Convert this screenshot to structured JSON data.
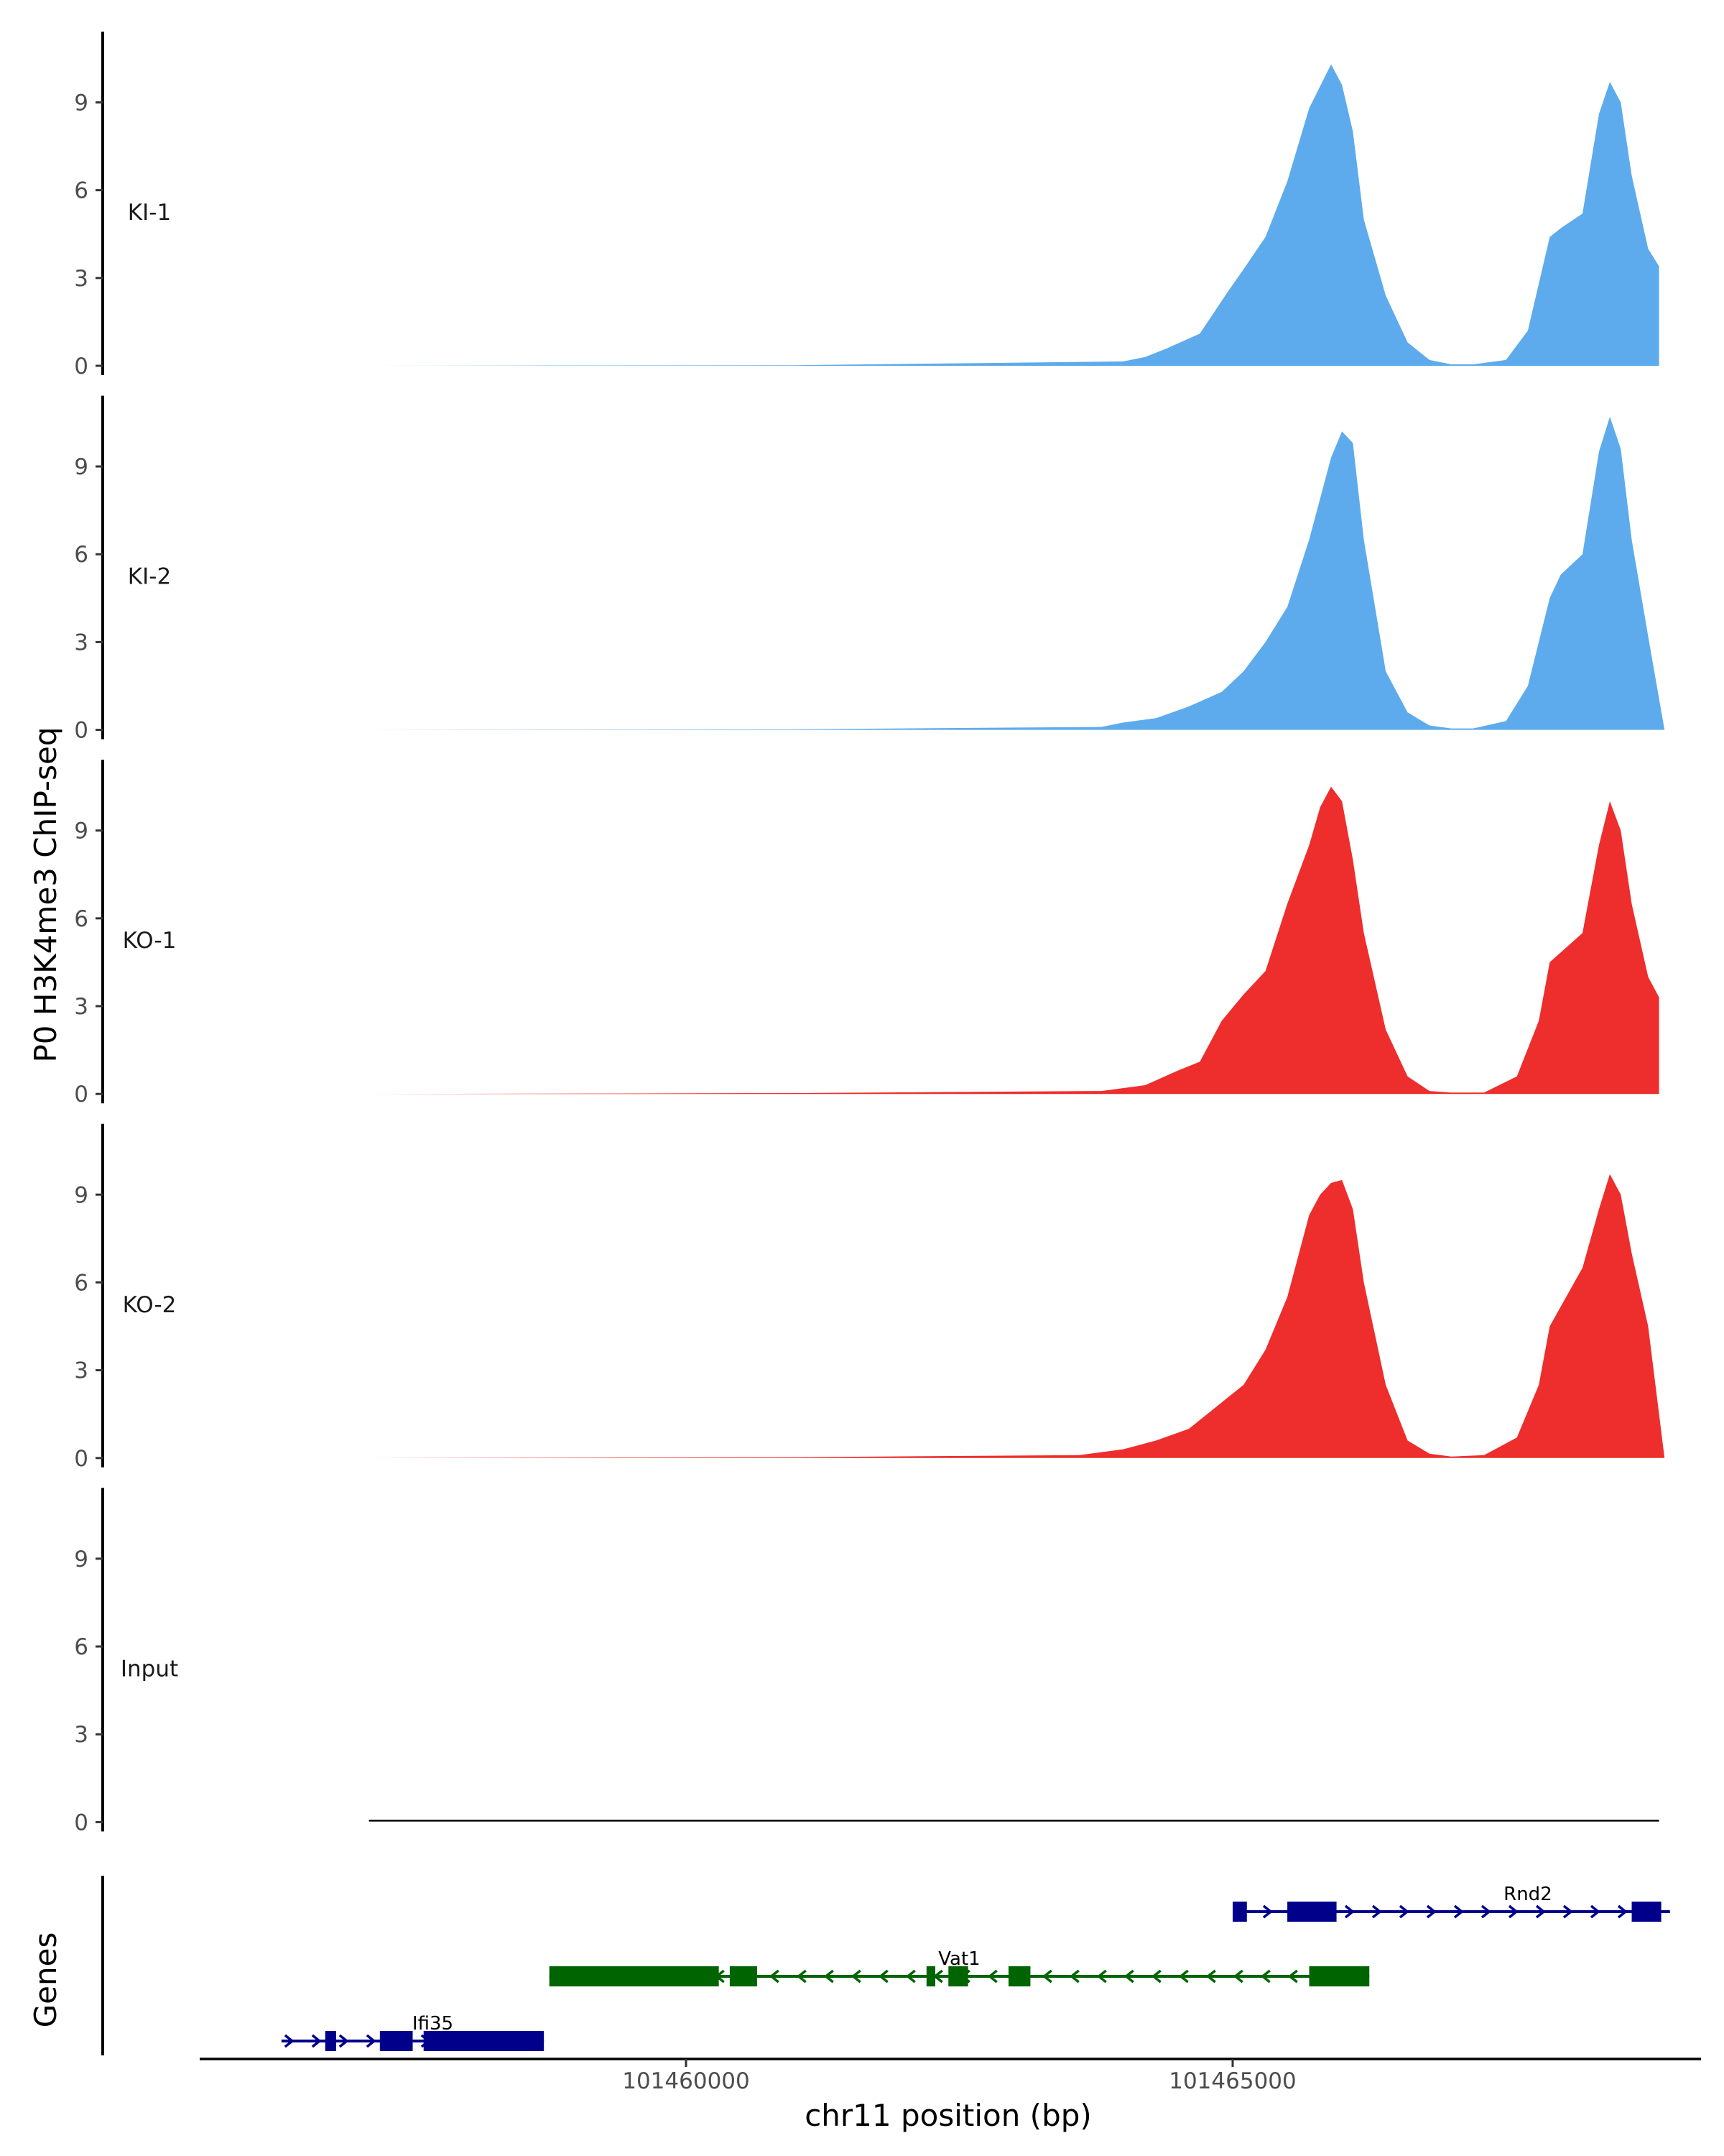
{
  "chart_data": {
    "type": "area",
    "ylabel": "P0 H3K4me3 ChIP-seq",
    "xlabel": "chr11 position (bp)",
    "gene_track_label": "Genes",
    "xlim": [
      101455700,
      101469400
    ],
    "x_ticks": [
      101460000,
      101465000
    ],
    "ylim": [
      0,
      11
    ],
    "y_ticks": [
      0,
      3,
      6,
      9
    ],
    "tracks": [
      {
        "name": "KI-1",
        "color": "#5DABEC",
        "x": [
          101457100,
          101461000,
          101464000,
          101464200,
          101464400,
          101464700,
          101464950,
          101465100,
          101465300,
          101465500,
          101465700,
          101465900,
          101466000,
          101466100,
          101466200,
          101466400,
          101466600,
          101466800,
          101467000,
          101467200,
          101467500,
          101467700,
          101467900,
          101468000,
          101468200,
          101468350,
          101468450,
          101468550,
          101468650,
          101468800,
          101468900
        ],
        "values": [
          0.0,
          0.02,
          0.15,
          0.3,
          0.6,
          1.1,
          2.5,
          3.3,
          4.4,
          6.3,
          8.8,
          10.3,
          9.6,
          8.0,
          5.0,
          2.4,
          0.8,
          0.2,
          0.05,
          0.05,
          0.2,
          1.2,
          4.4,
          4.7,
          5.2,
          8.6,
          9.7,
          9.0,
          6.5,
          4.0,
          3.4
        ]
      },
      {
        "name": "KI-2",
        "color": "#5DABEC",
        "x": [
          101457100,
          101461000,
          101463800,
          101464000,
          101464300,
          101464600,
          101464900,
          101465100,
          101465300,
          101465500,
          101465700,
          101465900,
          101466000,
          101466100,
          101466200,
          101466400,
          101466600,
          101466800,
          101467000,
          101467200,
          101467500,
          101467700,
          101467900,
          101468000,
          101468200,
          101468350,
          101468450,
          101468550,
          101468650,
          101468800,
          101468950
        ],
        "values": [
          0.0,
          0.02,
          0.1,
          0.25,
          0.4,
          0.8,
          1.3,
          2.0,
          3.0,
          4.2,
          6.5,
          9.3,
          10.2,
          9.8,
          6.5,
          2.0,
          0.6,
          0.15,
          0.05,
          0.05,
          0.3,
          1.5,
          4.5,
          5.3,
          6.0,
          9.5,
          10.7,
          9.6,
          6.5,
          3.2,
          0.0
        ]
      },
      {
        "name": "KO-1",
        "color": "#EE2D2D",
        "x": [
          101457100,
          101461000,
          101463800,
          101464200,
          101464500,
          101464700,
          101464900,
          101465100,
          101465300,
          101465500,
          101465700,
          101465800,
          101465900,
          101466000,
          101466100,
          101466200,
          101466400,
          101466600,
          101466800,
          101467000,
          101467300,
          101467600,
          101467800,
          101467900,
          101468050,
          101468200,
          101468350,
          101468450,
          101468550,
          101468650,
          101468800,
          101468900
        ],
        "values": [
          0.0,
          0.03,
          0.1,
          0.3,
          0.8,
          1.1,
          2.5,
          3.4,
          4.2,
          6.5,
          8.5,
          9.8,
          10.5,
          10.0,
          8.0,
          5.5,
          2.2,
          0.6,
          0.1,
          0.05,
          0.05,
          0.6,
          2.5,
          4.5,
          5.0,
          5.5,
          8.5,
          10.0,
          9.0,
          6.5,
          4.0,
          3.3
        ]
      },
      {
        "name": "KO-2",
        "color": "#EE2D2D",
        "x": [
          101457100,
          101461000,
          101463600,
          101464000,
          101464300,
          101464600,
          101464900,
          101465100,
          101465300,
          101465500,
          101465700,
          101465800,
          101465900,
          101466000,
          101466100,
          101466200,
          101466400,
          101466600,
          101466800,
          101467000,
          101467300,
          101467600,
          101467800,
          101467900,
          101468050,
          101468200,
          101468350,
          101468450,
          101468550,
          101468650,
          101468800,
          101468950
        ],
        "values": [
          0.0,
          0.03,
          0.1,
          0.3,
          0.6,
          1.0,
          1.9,
          2.5,
          3.7,
          5.5,
          8.3,
          9.0,
          9.4,
          9.5,
          8.5,
          6.0,
          2.5,
          0.6,
          0.15,
          0.05,
          0.1,
          0.7,
          2.5,
          4.5,
          5.5,
          6.5,
          8.5,
          9.7,
          9.0,
          7.0,
          4.5,
          0.0
        ]
      },
      {
        "name": "Input",
        "color": "#000000",
        "x": [
          101457100,
          101468900
        ],
        "values": [
          0.05,
          0.05
        ]
      }
    ],
    "genes": [
      {
        "name": "Rnd2",
        "strand": "+",
        "color": "#00008B",
        "row": 0,
        "start": 101465000,
        "end": 101469000,
        "exons": [
          [
            101465000,
            101465130
          ],
          [
            101465500,
            101465950
          ],
          [
            101468650,
            101468920
          ]
        ]
      },
      {
        "name": "Vat1",
        "strand": "-",
        "color": "#006400",
        "row": 1,
        "start": 101458750,
        "end": 101466250,
        "exons": [
          [
            101458750,
            101460300
          ],
          [
            101460400,
            101460650
          ],
          [
            101462200,
            101462280
          ],
          [
            101462400,
            101462580
          ],
          [
            101462950,
            101463150
          ],
          [
            101465700,
            101466250
          ]
        ]
      },
      {
        "name": "Ifi35",
        "strand": "+",
        "color": "#00008B",
        "row": 2,
        "start": 101456300,
        "end": 101458700,
        "exons": [
          [
            101456700,
            101456800
          ],
          [
            101457200,
            101457500
          ],
          [
            101457600,
            101458700
          ]
        ]
      }
    ]
  }
}
